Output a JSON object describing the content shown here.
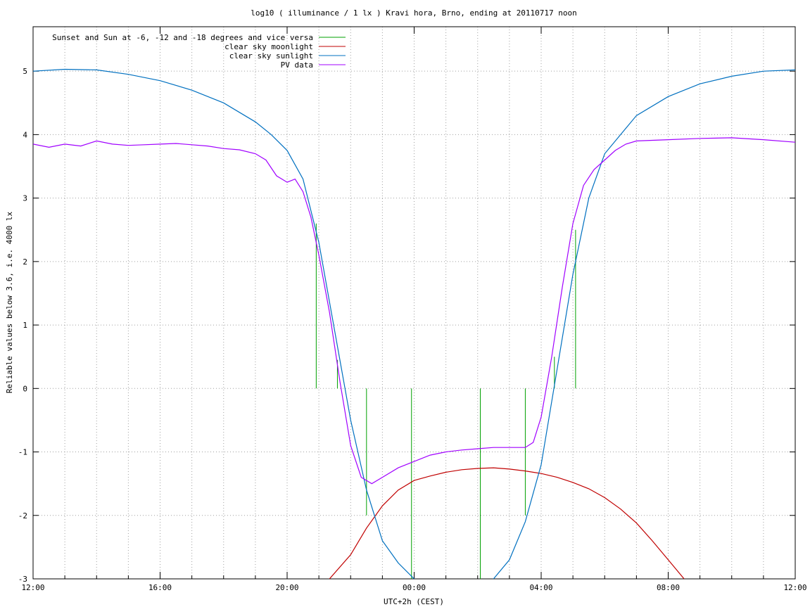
{
  "chart_data": {
    "type": "line",
    "title": "log10 ( illuminance / 1 lx ) Kravi hora, Brno, ending at 20110717 noon",
    "xlabel": "UTC+2h (CEST)",
    "ylabel": "Reliable values below 3.6, i.e. 4000 lx",
    "x_unit": "hour of day",
    "xlim": [
      "12:00",
      "12:00"
    ],
    "ylim": [
      -3,
      5.7
    ],
    "x_ticks": [
      "12:00",
      "16:00",
      "20:00",
      "00:00",
      "04:00",
      "08:00",
      "12:00"
    ],
    "y_ticks": [
      "-3",
      "-2",
      "-1",
      "0",
      "1",
      "2",
      "3",
      "4",
      "5"
    ],
    "grid": true,
    "legend_position": "top-left",
    "series": [
      {
        "name": "Sunset and Sun at -6, -12 and -18 degrees and vice versa",
        "color": "#00a000",
        "segments": [
          {
            "x": "20:55",
            "y": [
              0,
              2.6
            ]
          },
          {
            "x": "21:35",
            "y": [
              0,
              0.45
            ]
          },
          {
            "x": "22:30",
            "y": [
              -2,
              0
            ]
          },
          {
            "x": "23:55",
            "y": [
              -3,
              0
            ]
          },
          {
            "x": "02:05",
            "y": [
              -3,
              0
            ]
          },
          {
            "x": "03:30",
            "y": [
              -2,
              0
            ]
          },
          {
            "x": "04:25",
            "y": [
              0,
              0.5
            ]
          },
          {
            "x": "05:05",
            "y": [
              0,
              2.5
            ]
          }
        ]
      },
      {
        "name": "clear sky moonlight",
        "color": "#c00000",
        "x": [
          "21:20",
          "22:00",
          "22:30",
          "23:00",
          "23:30",
          "00:00",
          "00:30",
          "01:00",
          "01:30",
          "02:00",
          "02:30",
          "03:00",
          "03:30",
          "04:00",
          "04:30",
          "05:00",
          "05:30",
          "06:00",
          "06:30",
          "07:00",
          "07:30",
          "08:00",
          "08:30"
        ],
        "y": [
          -3.0,
          -2.62,
          -2.2,
          -1.85,
          -1.6,
          -1.45,
          -1.38,
          -1.32,
          -1.28,
          -1.26,
          -1.25,
          -1.27,
          -1.3,
          -1.34,
          -1.4,
          -1.48,
          -1.58,
          -1.72,
          -1.9,
          -2.12,
          -2.4,
          -2.7,
          -3.0
        ]
      },
      {
        "name": "clear sky sunlight",
        "color": "#0070c0",
        "x": [
          "12:00",
          "13:00",
          "14:00",
          "15:00",
          "16:00",
          "17:00",
          "18:00",
          "19:00",
          "19:30",
          "20:00",
          "20:30",
          "21:00",
          "21:30",
          "22:00",
          "22:30",
          "23:00",
          "23:30",
          "00:00",
          "00:30",
          "01:00",
          "01:30",
          "02:00",
          "02:30",
          "03:00",
          "03:30",
          "04:00",
          "04:30",
          "05:00",
          "05:30",
          "06:00",
          "07:00",
          "08:00",
          "09:00",
          "10:00",
          "11:00",
          "12:00"
        ],
        "y": [
          5.0,
          5.03,
          5.02,
          4.95,
          4.85,
          4.7,
          4.5,
          4.2,
          4.0,
          3.75,
          3.3,
          2.3,
          0.9,
          -0.5,
          -1.6,
          -2.4,
          -2.75,
          -3.0,
          -3.3,
          -3.5,
          -3.5,
          -3.3,
          -3.0,
          -2.7,
          -2.1,
          -1.2,
          0.3,
          1.8,
          3.0,
          3.7,
          4.3,
          4.6,
          4.8,
          4.92,
          5.0,
          5.02
        ]
      },
      {
        "name": "PV data",
        "color": "#a000ff",
        "x": [
          "12:00",
          "12:30",
          "13:00",
          "13:30",
          "14:00",
          "14:30",
          "15:00",
          "15:30",
          "16:00",
          "16:30",
          "17:00",
          "17:30",
          "18:00",
          "18:30",
          "19:00",
          "19:20",
          "19:40",
          "20:00",
          "20:15",
          "20:30",
          "20:45",
          "21:00",
          "21:20",
          "21:40",
          "22:00",
          "22:20",
          "22:40",
          "23:00",
          "23:30",
          "00:00",
          "00:30",
          "01:00",
          "01:30",
          "02:00",
          "02:30",
          "03:00",
          "03:30",
          "03:45",
          "04:00",
          "04:20",
          "04:40",
          "05:00",
          "05:20",
          "05:40",
          "06:00",
          "06:20",
          "06:40",
          "07:00",
          "08:00",
          "09:00",
          "10:00",
          "11:00",
          "12:00"
        ],
        "y": [
          3.85,
          3.8,
          3.85,
          3.82,
          3.9,
          3.85,
          3.83,
          3.84,
          3.85,
          3.86,
          3.84,
          3.82,
          3.78,
          3.76,
          3.7,
          3.6,
          3.35,
          3.25,
          3.3,
          3.1,
          2.7,
          2.1,
          1.2,
          0.1,
          -0.9,
          -1.4,
          -1.5,
          -1.4,
          -1.25,
          -1.15,
          -1.05,
          -1.0,
          -0.97,
          -0.95,
          -0.93,
          -0.93,
          -0.93,
          -0.85,
          -0.45,
          0.5,
          1.6,
          2.6,
          3.2,
          3.45,
          3.6,
          3.75,
          3.85,
          3.9,
          3.92,
          3.94,
          3.95,
          3.92,
          3.88
        ]
      }
    ]
  }
}
